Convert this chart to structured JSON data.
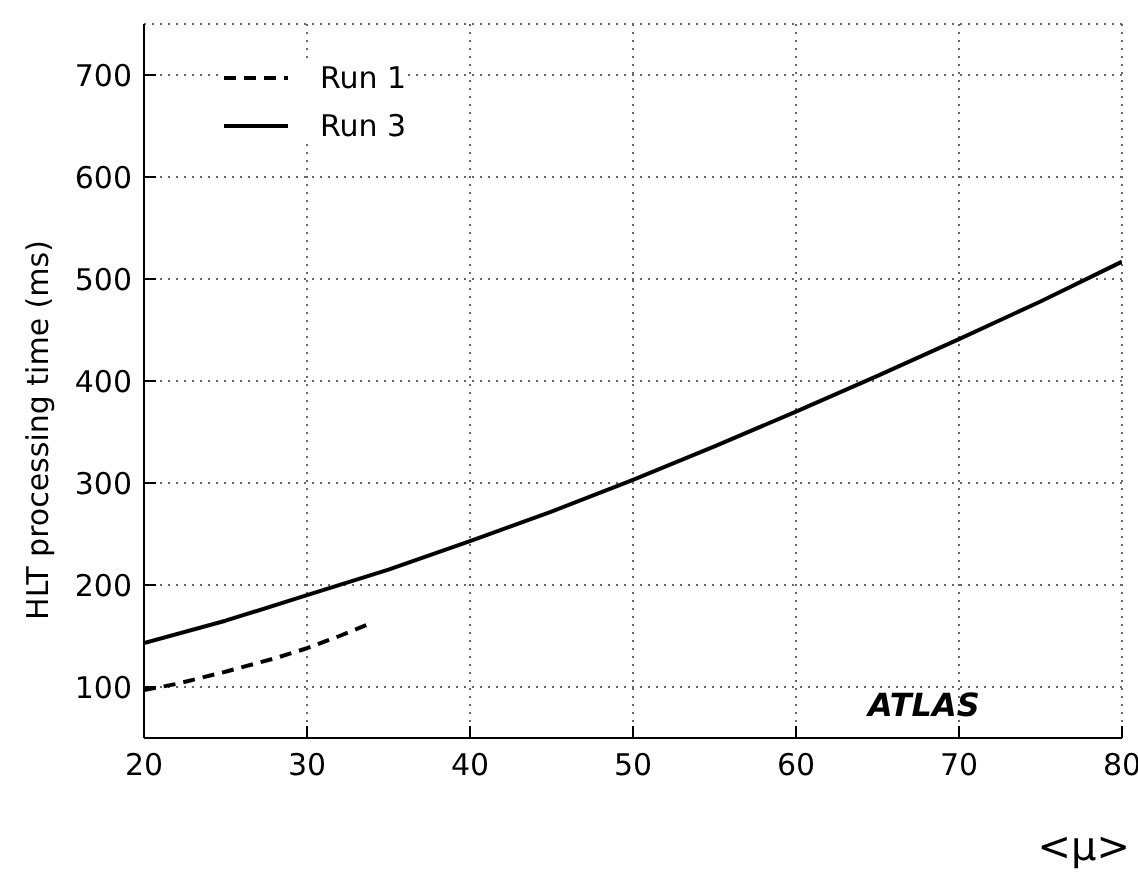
{
  "chart_data": {
    "type": "line",
    "ylabel": "HLT processing time (ms)",
    "xlabel": "<μ>",
    "annotations": [
      "ATLAS"
    ],
    "xlim": [
      20,
      80
    ],
    "xticks": [
      20,
      30,
      40,
      50,
      60,
      70,
      80
    ],
    "ylim": [
      50,
      750
    ],
    "yticks": [
      100,
      200,
      300,
      400,
      500,
      600,
      700
    ],
    "grid": true,
    "legend": "top left",
    "marker": "none",
    "series": [
      {
        "name": "Run 1",
        "color": "#000000",
        "line_style": "dashed",
        "x": [
          20,
          22,
          25,
          28,
          30,
          32,
          34
        ],
        "values": [
          97,
          103,
          115,
          128,
          138,
          150,
          163
        ]
      },
      {
        "name": "Run 3",
        "color": "#000000",
        "line_style": "solid",
        "x": [
          20,
          25,
          30,
          35,
          40,
          45,
          50,
          55,
          60,
          65,
          70,
          75,
          80
        ],
        "values": [
          143,
          165,
          190,
          215,
          243,
          272,
          303,
          336,
          370,
          405,
          441,
          478,
          517
        ]
      }
    ]
  }
}
